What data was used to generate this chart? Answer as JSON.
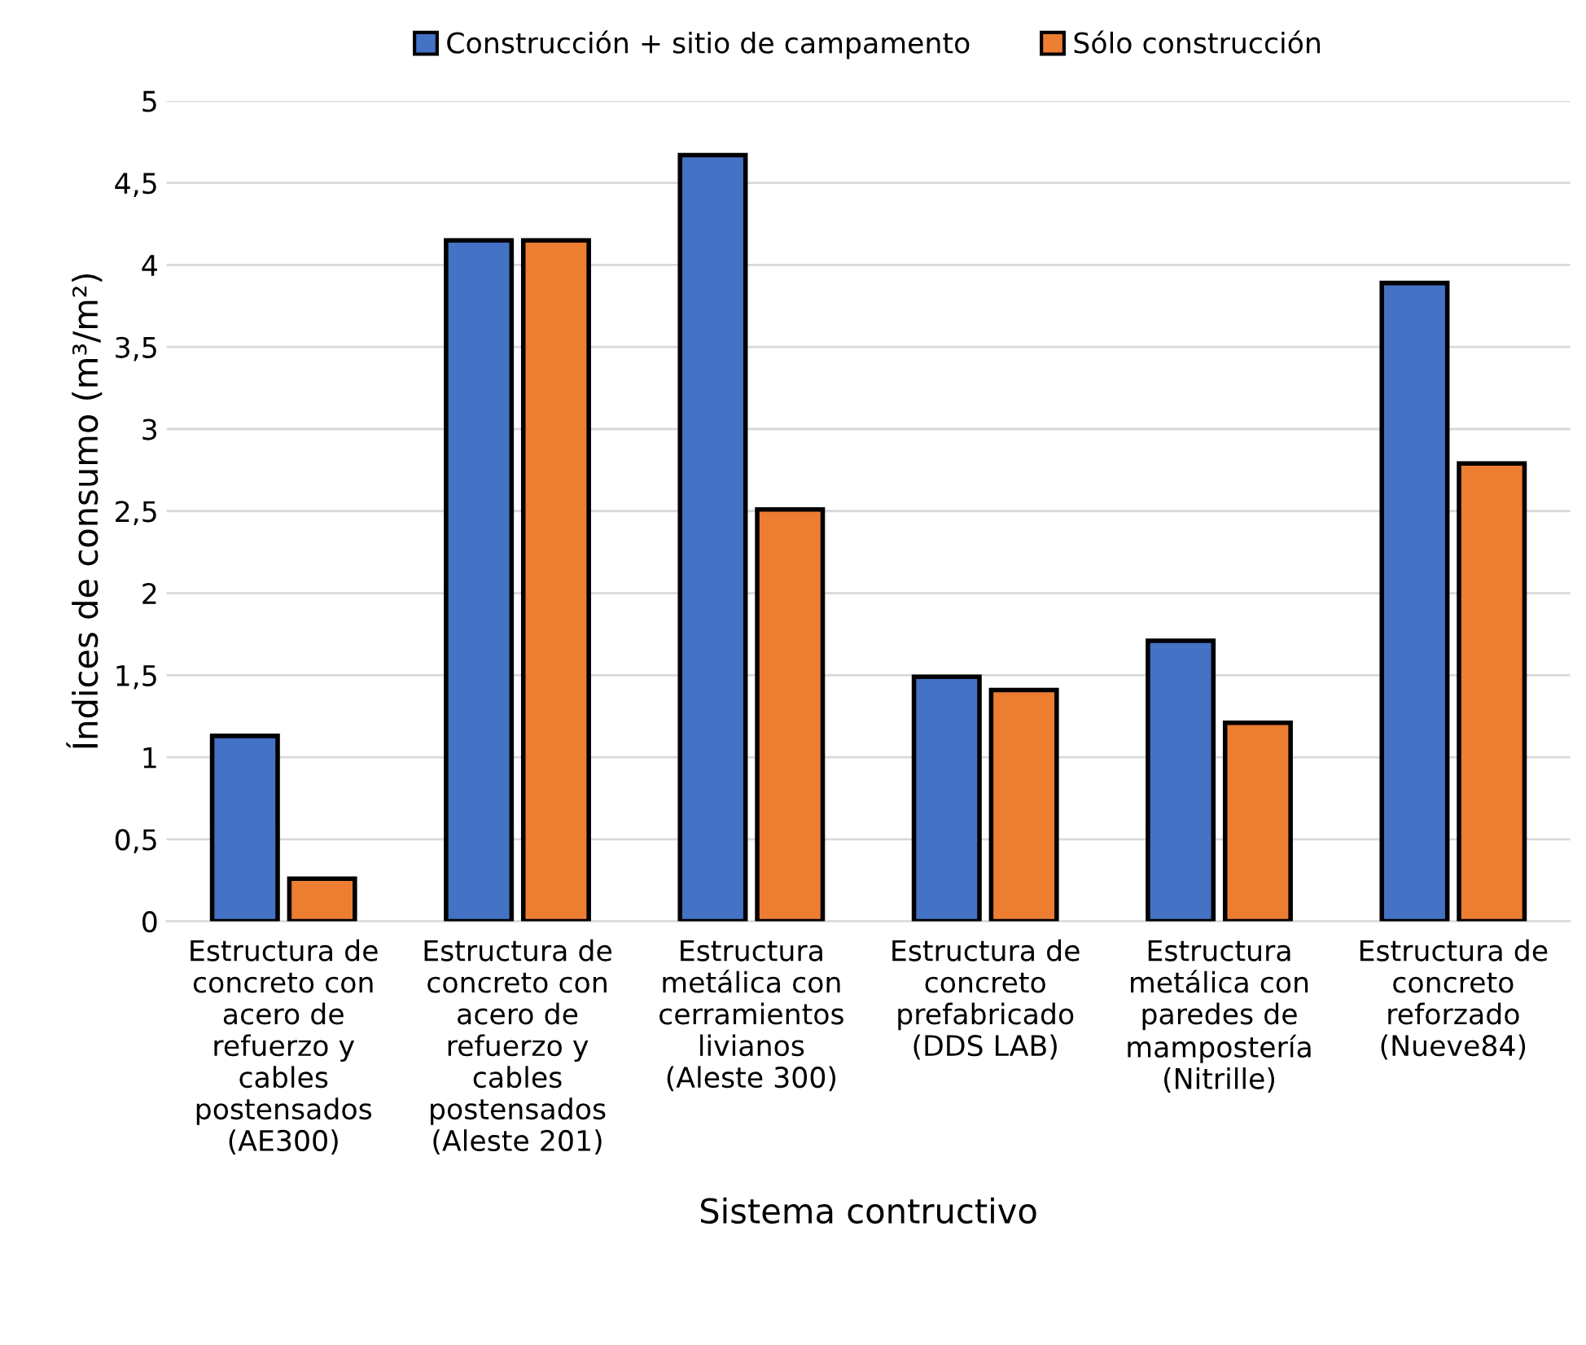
{
  "chart_data": {
    "type": "bar",
    "xlabel": "Sistema contructivo",
    "ylabel": "Índices de consumo (m³/m²)",
    "categories": [
      "Estructura de\nconcreto con\nacero de\nrefuerzo y\ncables\npostensados\n(AE300)",
      "Estructura de\nconcreto con\nacero de\nrefuerzo y\ncables\npostensados\n(Aleste 201)",
      "Estructura\nmetálica con\ncerramientos\nlivianos\n(Aleste 300)",
      "Estructura de\nconcreto\nprefabricado\n(DDS LAB)",
      "Estructura\nmetálica con\nparedes de\nmampostería\n(Nitrille)",
      "Estructura de\nconcreto\nreforzado\n(Nueve84)"
    ],
    "series": [
      {
        "name": "Construcción + sitio de campamento",
        "color": "#4472c4",
        "values": [
          1.13,
          4.15,
          4.67,
          1.49,
          1.71,
          3.89
        ]
      },
      {
        "name": "Sólo construcción",
        "color": "#ed7d31",
        "values": [
          0.26,
          4.15,
          2.51,
          1.41,
          1.21,
          2.79
        ]
      }
    ],
    "ylim": [
      0,
      5
    ],
    "yticks": [
      0,
      {
        "value": 0.5,
        "label": "0,5"
      },
      1,
      {
        "value": 1.5,
        "label": "1,5"
      },
      2,
      {
        "value": 2.5,
        "label": "2,5"
      },
      3,
      {
        "value": 3.5,
        "label": "3,5"
      },
      4,
      {
        "value": 4.5,
        "label": "4,5"
      },
      5
    ],
    "grid": "y",
    "legend": "top"
  }
}
